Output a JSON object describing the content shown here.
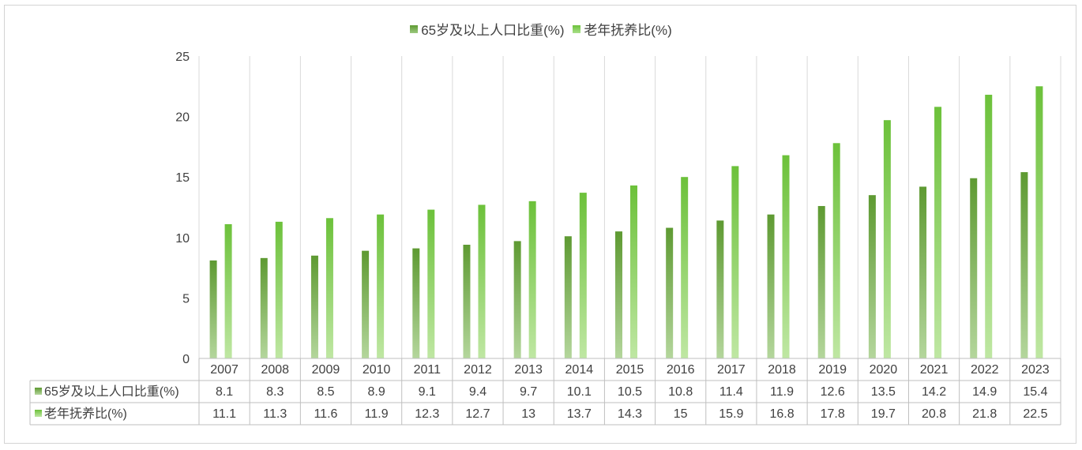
{
  "chart_data": {
    "type": "bar",
    "categories": [
      "2007",
      "2008",
      "2009",
      "2010",
      "2011",
      "2012",
      "2013",
      "2014",
      "2015",
      "2016",
      "2017",
      "2018",
      "2019",
      "2020",
      "2021",
      "2022",
      "2023"
    ],
    "series": [
      {
        "name": "65岁及以上人口比重(%)",
        "values": [
          8.1,
          8.3,
          8.5,
          8.9,
          9.1,
          9.4,
          9.7,
          10.1,
          10.5,
          10.8,
          11.4,
          11.9,
          12.6,
          13.5,
          14.2,
          14.9,
          15.4
        ],
        "color_top": "#5e9a32",
        "color_bottom": "#b4d69c"
      },
      {
        "name": "老年抚养比(%)",
        "values": [
          11.1,
          11.3,
          11.6,
          11.9,
          12.3,
          12.7,
          13,
          13.7,
          14.3,
          15,
          15.9,
          16.8,
          17.8,
          19.7,
          20.8,
          21.8,
          22.5
        ],
        "color_top": "#6cc13a",
        "color_bottom": "#bfe7a3"
      }
    ],
    "y_ticks": [
      "0",
      "5",
      "10",
      "15",
      "20",
      "25"
    ],
    "ylim": [
      0,
      25
    ],
    "legend_position": "top-center",
    "data_table": true,
    "grid": "vertical"
  }
}
